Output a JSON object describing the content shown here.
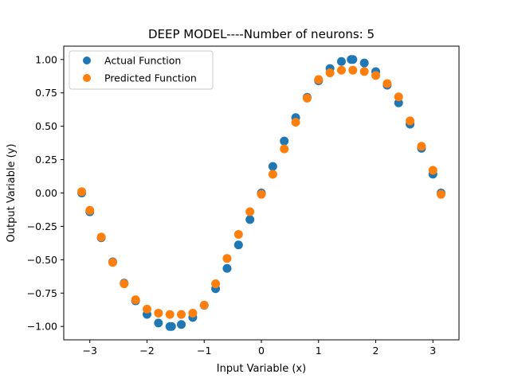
{
  "chart_data": {
    "type": "scatter",
    "title": "DEEP MODEL----Number of neurons: 5",
    "xlabel": "Input Variable (x)",
    "ylabel": "Output Variable (y)",
    "xlim": [
      -3.456,
      3.456
    ],
    "ylim": [
      -1.1,
      1.1
    ],
    "xticks": [
      -3,
      -2,
      -1,
      0,
      1,
      2,
      3
    ],
    "xtick_labels": [
      "−3",
      "−2",
      "−1",
      "0",
      "1",
      "2",
      "3"
    ],
    "yticks": [
      -1.0,
      -0.75,
      -0.5,
      -0.25,
      0.0,
      0.25,
      0.5,
      0.75,
      1.0
    ],
    "ytick_labels": [
      "−1.00",
      "−0.75",
      "−0.50",
      "−0.25",
      "0.00",
      "0.25",
      "0.50",
      "0.75",
      "1.00"
    ],
    "grid": false,
    "legend_position": "upper-left",
    "series": [
      {
        "name": "Actual Function",
        "color": "#1f77b4",
        "x": [
          -3.1416,
          -3.0,
          -2.8,
          -2.6,
          -2.4,
          -2.2,
          -2.0,
          -1.8,
          -1.6,
          -1.5708,
          -1.4,
          -1.2,
          -1.0,
          -0.8,
          -0.6,
          -0.4,
          -0.2,
          0.0,
          0.2,
          0.4,
          0.6,
          0.8,
          1.0,
          1.2,
          1.4,
          1.5708,
          1.6,
          1.8,
          2.0,
          2.2,
          2.4,
          2.6,
          2.8,
          3.0,
          3.1416
        ],
        "y": [
          0.0,
          -0.141,
          -0.335,
          -0.516,
          -0.675,
          -0.808,
          -0.909,
          -0.974,
          -1.0,
          -1.0,
          -0.985,
          -0.932,
          -0.841,
          -0.717,
          -0.565,
          -0.389,
          -0.199,
          0.0,
          0.199,
          0.389,
          0.565,
          0.717,
          0.841,
          0.932,
          0.985,
          1.0,
          1.0,
          0.974,
          0.909,
          0.808,
          0.675,
          0.516,
          0.335,
          0.141,
          0.0
        ]
      },
      {
        "name": "Predicted Function",
        "color": "#ff7f0e",
        "x": [
          -3.1416,
          -3.0,
          -2.8,
          -2.6,
          -2.4,
          -2.2,
          -2.0,
          -1.8,
          -1.6,
          -1.4,
          -1.2,
          -1.0,
          -0.8,
          -0.6,
          -0.4,
          -0.2,
          0.0,
          0.2,
          0.4,
          0.6,
          0.8,
          1.0,
          1.2,
          1.4,
          1.6,
          1.8,
          2.0,
          2.2,
          2.4,
          2.6,
          2.8,
          3.0,
          3.1416
        ],
        "y": [
          0.01,
          -0.13,
          -0.33,
          -0.52,
          -0.68,
          -0.8,
          -0.87,
          -0.9,
          -0.91,
          -0.91,
          -0.9,
          -0.84,
          -0.68,
          -0.49,
          -0.31,
          -0.14,
          -0.01,
          0.14,
          0.33,
          0.53,
          0.71,
          0.85,
          0.9,
          0.92,
          0.92,
          0.91,
          0.88,
          0.82,
          0.72,
          0.54,
          0.35,
          0.17,
          -0.01
        ]
      }
    ]
  }
}
